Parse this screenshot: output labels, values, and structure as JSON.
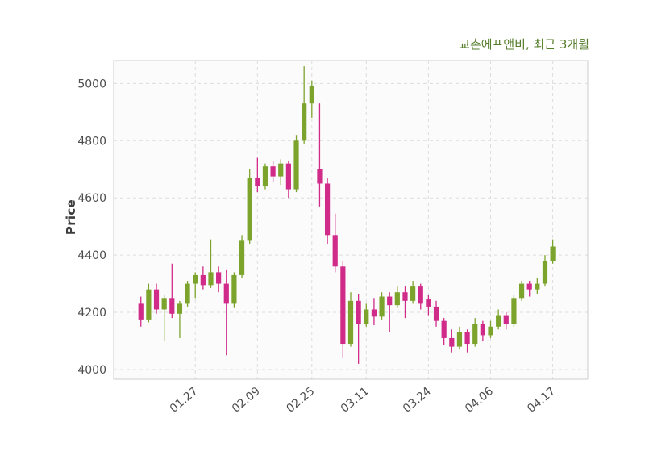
{
  "chart_data": {
    "type": "candlestick",
    "title": "교촌에프앤비, 최근 3개월",
    "ylabel": "Price",
    "ylim": [
      3966,
      5080
    ],
    "yticks": [
      4000,
      4200,
      4400,
      4600,
      4800,
      5000
    ],
    "xticks": [
      {
        "index": 7,
        "label": "01.27"
      },
      {
        "index": 15,
        "label": "02.09"
      },
      {
        "index": 22,
        "label": "02.25"
      },
      {
        "index": 29,
        "label": "03.11"
      },
      {
        "index": 37,
        "label": "03.24"
      },
      {
        "index": 45,
        "label": "04.06"
      },
      {
        "index": 53,
        "label": "04.17"
      }
    ],
    "grid": true,
    "legend": "none",
    "candles_ohlc": [
      [
        4230,
        4255,
        4150,
        4175
      ],
      [
        4175,
        4300,
        4165,
        4280
      ],
      [
        4280,
        4300,
        4195,
        4210
      ],
      [
        4210,
        4260,
        4100,
        4250
      ],
      [
        4250,
        4370,
        4180,
        4195
      ],
      [
        4195,
        4240,
        4110,
        4230
      ],
      [
        4230,
        4310,
        4220,
        4300
      ],
      [
        4300,
        4340,
        4250,
        4330
      ],
      [
        4330,
        4360,
        4280,
        4295
      ],
      [
        4295,
        4455,
        4285,
        4340
      ],
      [
        4340,
        4360,
        4270,
        4300
      ],
      [
        4300,
        4350,
        4050,
        4230
      ],
      [
        4230,
        4340,
        4215,
        4330
      ],
      [
        4330,
        4470,
        4320,
        4450
      ],
      [
        4450,
        4700,
        4440,
        4670
      ],
      [
        4670,
        4740,
        4620,
        4640
      ],
      [
        4640,
        4720,
        4630,
        4710
      ],
      [
        4710,
        4730,
        4655,
        4675
      ],
      [
        4675,
        4735,
        4645,
        4720
      ],
      [
        4720,
        4730,
        4600,
        4630
      ],
      [
        4630,
        4820,
        4620,
        4800
      ],
      [
        4800,
        5060,
        4790,
        4930
      ],
      [
        4930,
        5010,
        4880,
        4990
      ],
      [
        4700,
        4930,
        4570,
        4650
      ],
      [
        4650,
        4670,
        4440,
        4470
      ],
      [
        4470,
        4545,
        4340,
        4360
      ],
      [
        4360,
        4380,
        4040,
        4090
      ],
      [
        4090,
        4270,
        4080,
        4240
      ],
      [
        4240,
        4265,
        4020,
        4160
      ],
      [
        4160,
        4230,
        4150,
        4210
      ],
      [
        4210,
        4250,
        4155,
        4185
      ],
      [
        4185,
        4270,
        4175,
        4255
      ],
      [
        4255,
        4270,
        4130,
        4225
      ],
      [
        4225,
        4290,
        4215,
        4270
      ],
      [
        4270,
        4290,
        4180,
        4240
      ],
      [
        4240,
        4310,
        4230,
        4290
      ],
      [
        4290,
        4300,
        4210,
        4230
      ],
      [
        4245,
        4260,
        4190,
        4220
      ],
      [
        4220,
        4240,
        4150,
        4170
      ],
      [
        4170,
        4180,
        4085,
        4110
      ],
      [
        4110,
        4140,
        4060,
        4080
      ],
      [
        4080,
        4150,
        4070,
        4130
      ],
      [
        4130,
        4140,
        4060,
        4090
      ],
      [
        4090,
        4180,
        4080,
        4160
      ],
      [
        4160,
        4170,
        4100,
        4120
      ],
      [
        4120,
        4170,
        4110,
        4150
      ],
      [
        4150,
        4210,
        4140,
        4190
      ],
      [
        4190,
        4200,
        4140,
        4160
      ],
      [
        4160,
        4260,
        4150,
        4250
      ],
      [
        4250,
        4310,
        4240,
        4300
      ],
      [
        4300,
        4310,
        4255,
        4280
      ],
      [
        4280,
        4320,
        4265,
        4300
      ],
      [
        4300,
        4400,
        4290,
        4380
      ],
      [
        4380,
        4455,
        4370,
        4430
      ]
    ],
    "colors": {
      "up": "#7ca42d",
      "down": "#d12b8a",
      "grid": "#dcdcdc",
      "border": "#cccccc",
      "plot_bg": "#fbfbfb",
      "title": "#567d2b",
      "tick": "#4d4d4d",
      "ylabel": "#3d3d3d"
    }
  }
}
